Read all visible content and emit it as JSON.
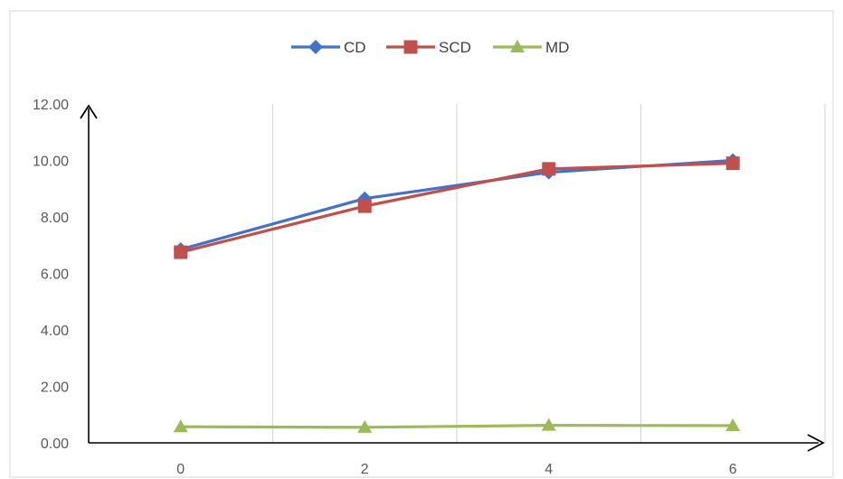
{
  "chart_data": {
    "type": "line",
    "title": "",
    "xlabel": "",
    "ylabel": "",
    "categories": [
      "0",
      "2",
      "4",
      "6"
    ],
    "x": [
      0,
      2,
      4,
      6
    ],
    "ylim": [
      0,
      12
    ],
    "yticks": [
      "0.00",
      "2.00",
      "4.00",
      "6.00",
      "8.00",
      "10.00",
      "12.00"
    ],
    "grid": {
      "vertical": true,
      "horizontal": false
    },
    "legend_position": "top-center",
    "series": [
      {
        "name": "CD",
        "values": [
          6.85,
          8.65,
          9.58,
          10.0
        ],
        "color": "#4472C4",
        "marker": "diamond"
      },
      {
        "name": "SCD",
        "values": [
          6.75,
          8.38,
          9.7,
          9.9
        ],
        "color": "#C0504D",
        "marker": "square"
      },
      {
        "name": "MD",
        "values": [
          0.57,
          0.55,
          0.62,
          0.61
        ],
        "color": "#9BBB59",
        "marker": "triangle"
      }
    ]
  }
}
